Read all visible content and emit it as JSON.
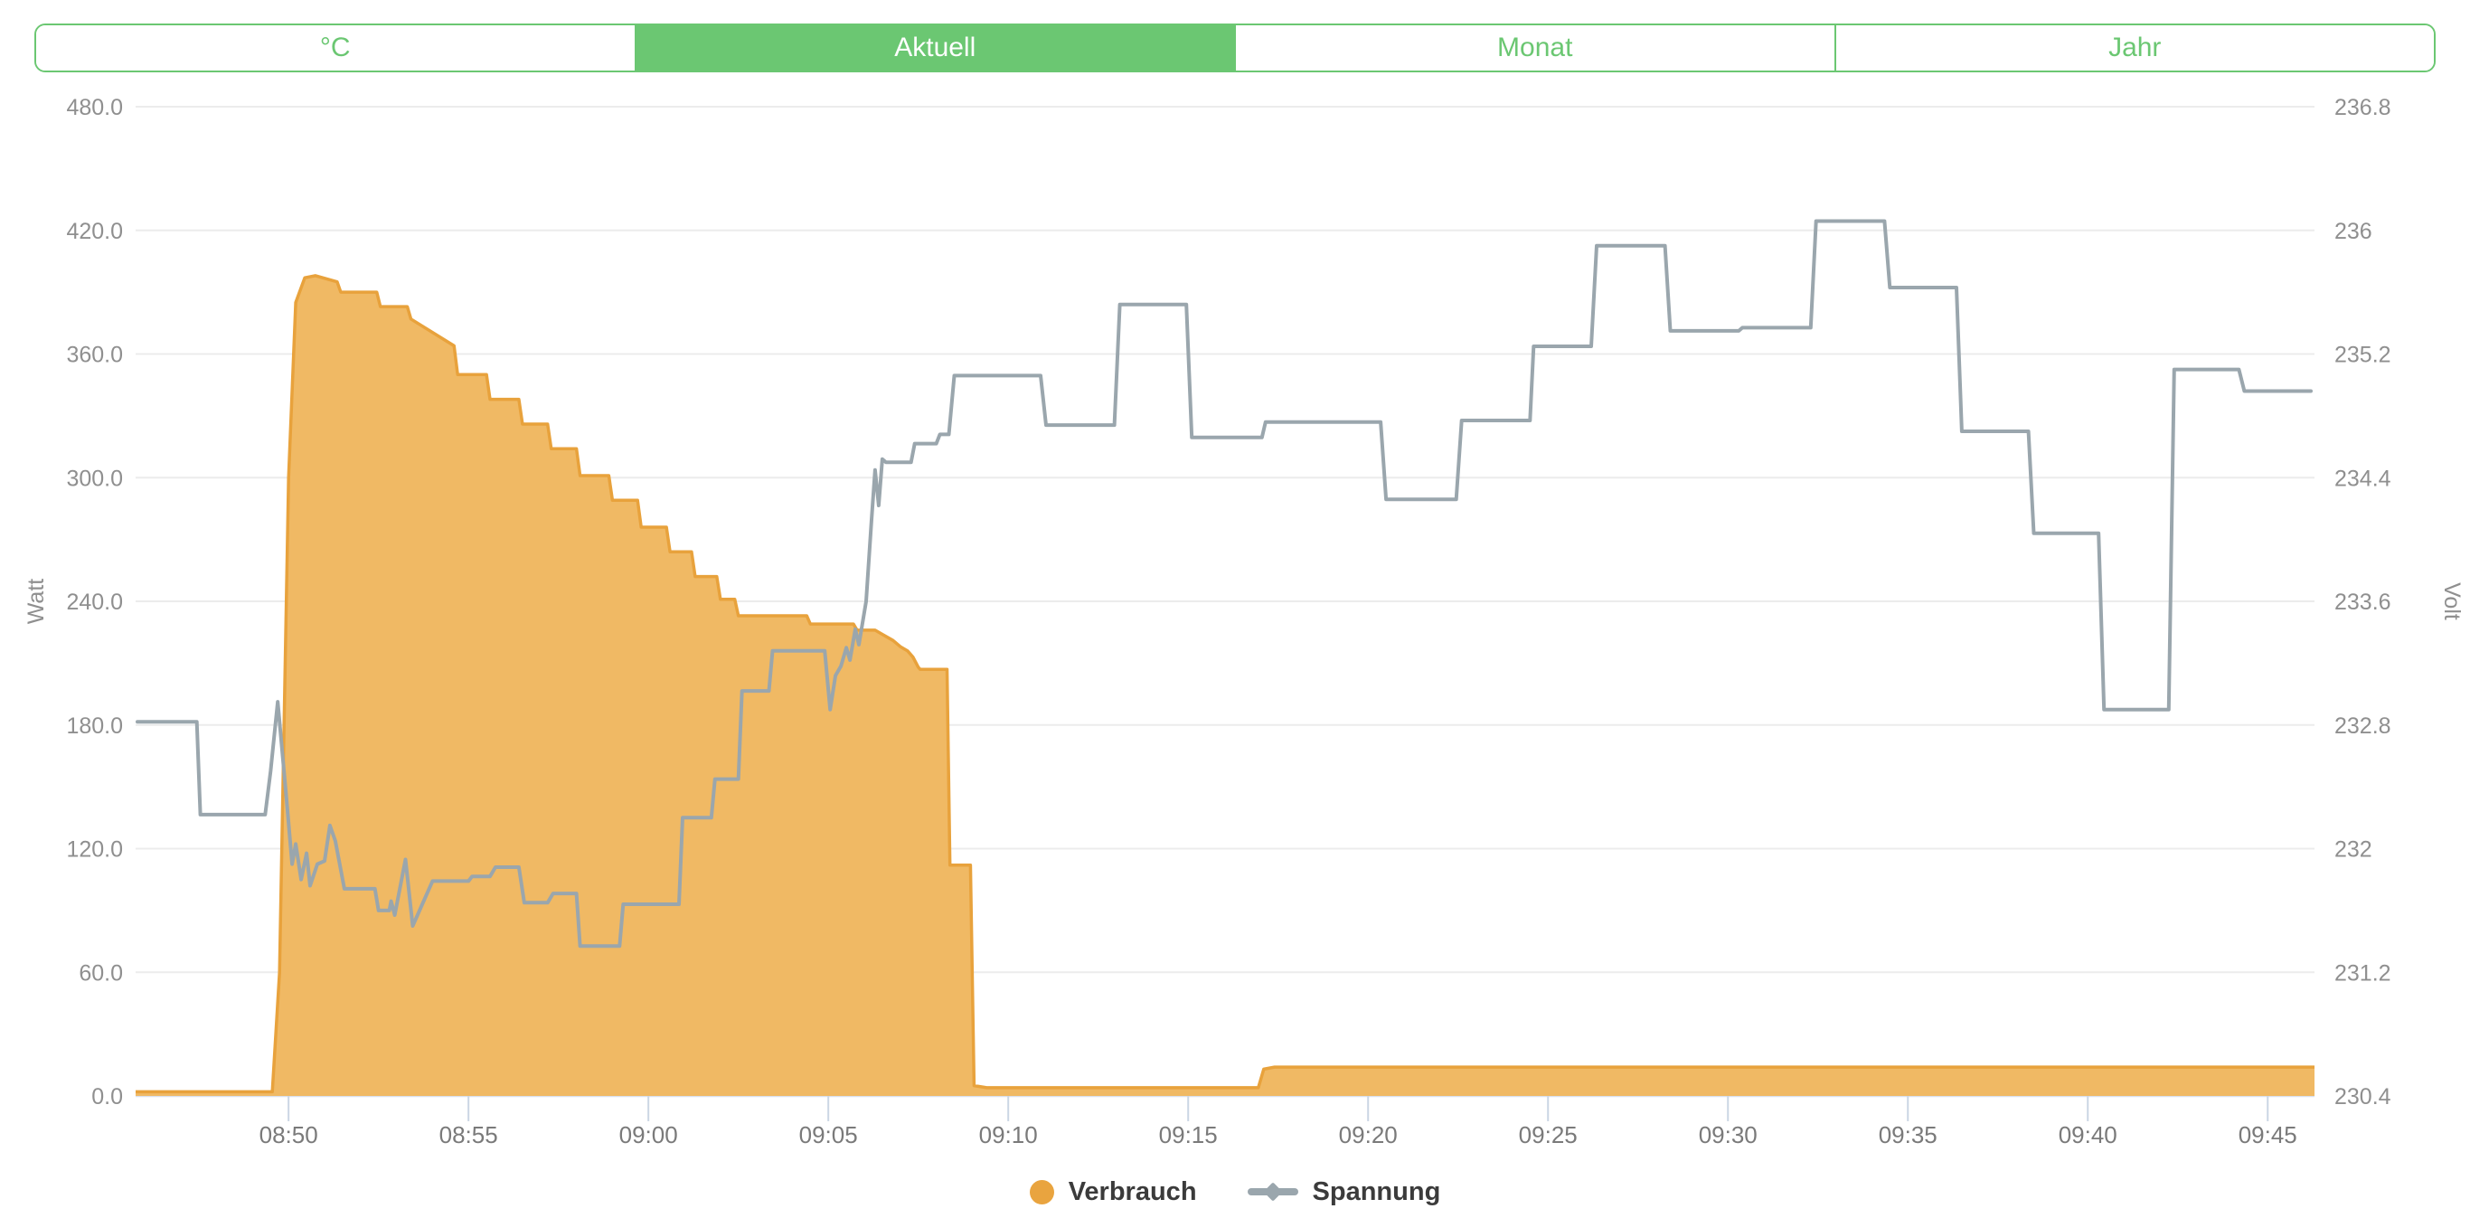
{
  "colors": {
    "accent_green": "#6BC772",
    "consumption_fill": "#F0B964",
    "consumption_stroke": "#E8A23C",
    "voltage_line": "#9AA6AD",
    "gridline": "#ECECEC",
    "baseline": "#D9E0ED",
    "tick_mark": "#CBD6E4",
    "axis_text": "#8F8F8F",
    "x_label_text": "#7A7A7A",
    "legend_text": "#3b3b3b"
  },
  "tabs": {
    "items": [
      {
        "label": "°C",
        "selected": false
      },
      {
        "label": "Aktuell",
        "selected": true
      },
      {
        "label": "Monat",
        "selected": false
      },
      {
        "label": "Jahr",
        "selected": false
      }
    ]
  },
  "legend": {
    "items": [
      {
        "label": "Verbrauch",
        "marker": "circle",
        "color": "#E9A43F"
      },
      {
        "label": "Spannung",
        "marker": "line-diamond",
        "color": "#9AA6AD"
      }
    ]
  },
  "chart_data": {
    "type": "area+line",
    "time_axis": {
      "unit": "minutes_after_08:45",
      "domain": [
        0.75,
        61.3
      ],
      "ticks": [
        {
          "label": "08:50",
          "t": 5
        },
        {
          "label": "08:55",
          "t": 10
        },
        {
          "label": "09:00",
          "t": 15
        },
        {
          "label": "09:05",
          "t": 20
        },
        {
          "label": "09:10",
          "t": 25
        },
        {
          "label": "09:15",
          "t": 30
        },
        {
          "label": "09:20",
          "t": 35
        },
        {
          "label": "09:25",
          "t": 40
        },
        {
          "label": "09:30",
          "t": 45
        },
        {
          "label": "09:35",
          "t": 50
        },
        {
          "label": "09:40",
          "t": 55
        },
        {
          "label": "09:45",
          "t": 60
        }
      ]
    },
    "watt_axis": {
      "title": "Watt",
      "min": 0,
      "max": 480,
      "ticks": [
        {
          "label": "0.0",
          "value": 0
        },
        {
          "label": "60.0",
          "value": 60
        },
        {
          "label": "120.0",
          "value": 120
        },
        {
          "label": "180.0",
          "value": 180
        },
        {
          "label": "240.0",
          "value": 240
        },
        {
          "label": "300.0",
          "value": 300
        },
        {
          "label": "360.0",
          "value": 360
        },
        {
          "label": "420.0",
          "value": 420
        },
        {
          "label": "480.0",
          "value": 480
        }
      ]
    },
    "volt_axis": {
      "title": "Volt",
      "min": 230.4,
      "max": 236.8,
      "ticks": [
        {
          "label": "230.4",
          "value": 230.4
        },
        {
          "label": "231.2",
          "value": 231.2
        },
        {
          "label": "232",
          "value": 232.0
        },
        {
          "label": "232.8",
          "value": 232.8
        },
        {
          "label": "233.6",
          "value": 233.6
        },
        {
          "label": "234.4",
          "value": 234.4
        },
        {
          "label": "235.2",
          "value": 235.2
        },
        {
          "label": "236",
          "value": 236.0
        },
        {
          "label": "236.8",
          "value": 236.8
        }
      ]
    },
    "grid": "horizontal-only",
    "legend_position": "bottom-center",
    "series": [
      {
        "name": "Verbrauch",
        "axis": "watt",
        "render": "area",
        "points": [
          [
            0.75,
            2
          ],
          [
            4.55,
            2
          ],
          [
            4.75,
            60
          ],
          [
            5.0,
            300
          ],
          [
            5.2,
            385
          ],
          [
            5.45,
            397
          ],
          [
            5.75,
            398
          ],
          [
            6.35,
            395
          ],
          [
            6.45,
            390
          ],
          [
            7.45,
            390
          ],
          [
            7.55,
            383
          ],
          [
            8.3,
            383
          ],
          [
            8.4,
            377
          ],
          [
            9.6,
            364
          ],
          [
            9.7,
            350
          ],
          [
            10.5,
            350
          ],
          [
            10.6,
            338
          ],
          [
            11.4,
            338
          ],
          [
            11.5,
            326
          ],
          [
            12.2,
            326
          ],
          [
            12.3,
            314
          ],
          [
            13.0,
            314
          ],
          [
            13.1,
            301
          ],
          [
            13.9,
            301
          ],
          [
            14.0,
            289
          ],
          [
            14.7,
            289
          ],
          [
            14.8,
            276
          ],
          [
            15.5,
            276
          ],
          [
            15.6,
            264
          ],
          [
            16.2,
            264
          ],
          [
            16.3,
            252
          ],
          [
            16.9,
            252
          ],
          [
            17.0,
            241
          ],
          [
            17.4,
            241
          ],
          [
            17.5,
            233
          ],
          [
            19.4,
            233
          ],
          [
            19.5,
            229
          ],
          [
            20.7,
            229
          ],
          [
            20.8,
            226
          ],
          [
            21.3,
            226
          ],
          [
            21.5,
            224
          ],
          [
            21.8,
            221
          ],
          [
            22.0,
            218
          ],
          [
            22.2,
            216
          ],
          [
            22.35,
            213
          ],
          [
            22.5,
            208
          ],
          [
            22.55,
            207
          ],
          [
            23.3,
            207
          ],
          [
            23.38,
            112
          ],
          [
            23.95,
            112
          ],
          [
            24.05,
            5
          ],
          [
            24.4,
            4
          ],
          [
            31.95,
            4
          ],
          [
            32.1,
            13
          ],
          [
            32.4,
            14
          ],
          [
            61.3,
            14
          ]
        ]
      },
      {
        "name": "Spannung",
        "axis": "volt",
        "render": "line",
        "points": [
          [
            0.8,
            232.82
          ],
          [
            2.45,
            232.82
          ],
          [
            2.55,
            232.22
          ],
          [
            4.35,
            232.22
          ],
          [
            4.5,
            232.5
          ],
          [
            4.7,
            232.95
          ],
          [
            4.95,
            232.3
          ],
          [
            5.1,
            231.9
          ],
          [
            5.2,
            232.03
          ],
          [
            5.35,
            231.8
          ],
          [
            5.5,
            231.97
          ],
          [
            5.6,
            231.76
          ],
          [
            5.8,
            231.9
          ],
          [
            6.0,
            231.92
          ],
          [
            6.15,
            232.15
          ],
          [
            6.3,
            232.05
          ],
          [
            6.55,
            231.74
          ],
          [
            7.4,
            231.74
          ],
          [
            7.5,
            231.6
          ],
          [
            7.8,
            231.6
          ],
          [
            7.85,
            231.66
          ],
          [
            7.95,
            231.57
          ],
          [
            8.25,
            231.93
          ],
          [
            8.45,
            231.5
          ],
          [
            9.0,
            231.79
          ],
          [
            10.0,
            231.79
          ],
          [
            10.1,
            231.82
          ],
          [
            10.6,
            231.82
          ],
          [
            10.75,
            231.88
          ],
          [
            11.4,
            231.88
          ],
          [
            11.55,
            231.65
          ],
          [
            12.2,
            231.65
          ],
          [
            12.35,
            231.71
          ],
          [
            13.0,
            231.71
          ],
          [
            13.1,
            231.37
          ],
          [
            14.2,
            231.37
          ],
          [
            14.3,
            231.64
          ],
          [
            15.85,
            231.64
          ],
          [
            15.95,
            232.2
          ],
          [
            16.75,
            232.2
          ],
          [
            16.85,
            232.45
          ],
          [
            17.5,
            232.45
          ],
          [
            17.6,
            233.02
          ],
          [
            18.35,
            233.02
          ],
          [
            18.45,
            233.28
          ],
          [
            19.9,
            233.28
          ],
          [
            20.05,
            232.9
          ],
          [
            20.2,
            233.12
          ],
          [
            20.35,
            233.18
          ],
          [
            20.5,
            233.3
          ],
          [
            20.6,
            233.22
          ],
          [
            20.75,
            233.42
          ],
          [
            20.85,
            233.32
          ],
          [
            21.05,
            233.6
          ],
          [
            21.2,
            234.12
          ],
          [
            21.3,
            234.45
          ],
          [
            21.4,
            234.22
          ],
          [
            21.5,
            234.52
          ],
          [
            21.6,
            234.5
          ],
          [
            22.3,
            234.5
          ],
          [
            22.4,
            234.62
          ],
          [
            23.0,
            234.62
          ],
          [
            23.1,
            234.68
          ],
          [
            23.35,
            234.68
          ],
          [
            23.5,
            235.06
          ],
          [
            25.9,
            235.06
          ],
          [
            26.05,
            234.74
          ],
          [
            27.95,
            234.74
          ],
          [
            28.1,
            235.52
          ],
          [
            29.95,
            235.52
          ],
          [
            30.1,
            234.66
          ],
          [
            32.05,
            234.66
          ],
          [
            32.15,
            234.76
          ],
          [
            35.35,
            234.76
          ],
          [
            35.5,
            234.26
          ],
          [
            37.45,
            234.26
          ],
          [
            37.6,
            234.77
          ],
          [
            39.5,
            234.77
          ],
          [
            39.6,
            235.25
          ],
          [
            41.2,
            235.25
          ],
          [
            41.35,
            235.9
          ],
          [
            43.25,
            235.9
          ],
          [
            43.4,
            235.35
          ],
          [
            45.3,
            235.35
          ],
          [
            45.4,
            235.37
          ],
          [
            47.3,
            235.37
          ],
          [
            47.45,
            236.06
          ],
          [
            49.35,
            236.06
          ],
          [
            49.5,
            235.63
          ],
          [
            51.35,
            235.63
          ],
          [
            51.5,
            234.7
          ],
          [
            53.35,
            234.7
          ],
          [
            53.5,
            234.04
          ],
          [
            55.3,
            234.04
          ],
          [
            55.45,
            232.9
          ],
          [
            57.25,
            232.9
          ],
          [
            57.4,
            235.1
          ],
          [
            59.2,
            235.1
          ],
          [
            59.35,
            234.96
          ],
          [
            61.2,
            234.96
          ]
        ]
      }
    ]
  }
}
